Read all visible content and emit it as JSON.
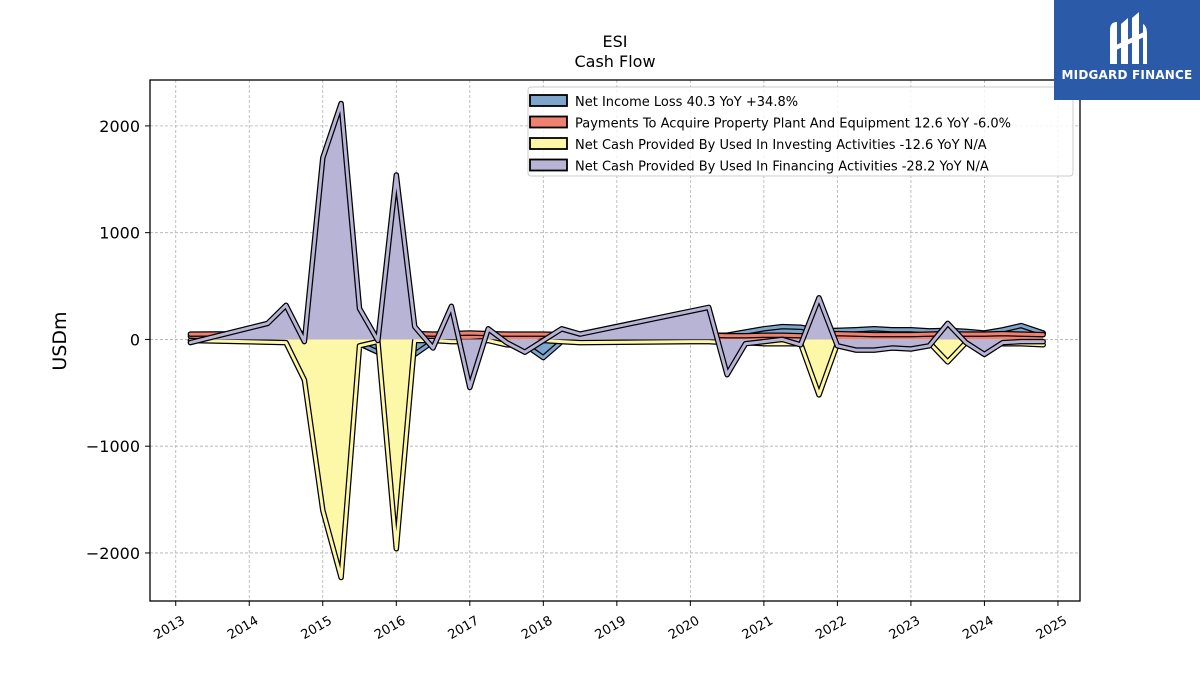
{
  "title": "ESI",
  "subtitle": "Cash Flow",
  "brand": {
    "name": "MIDGARD FINANCE",
    "color": "#2a5aa8"
  },
  "chart_data": {
    "type": "area",
    "title": "ESI",
    "subtitle": "Cash Flow",
    "xlabel": "",
    "ylabel": "USDm",
    "xlim": [
      2012.65,
      2025.3
    ],
    "ylim": [
      -2450,
      2430
    ],
    "xticks": [
      2013,
      2014,
      2015,
      2016,
      2017,
      2018,
      2019,
      2020,
      2021,
      2022,
      2023,
      2024,
      2025
    ],
    "yticks": [
      -2000,
      -1000,
      0,
      1000,
      2000
    ],
    "ytick_labels": [
      "−2000",
      "−1000",
      "0",
      "1000",
      "2000"
    ],
    "grid": true,
    "legend_position": "top-right",
    "series": [
      {
        "name": "Net Income Loss  40.3 YoY +34.8%",
        "color": "#7ea6cc",
        "x": [
          2013.2,
          2014.5,
          2015.0,
          2015.25,
          2015.5,
          2015.75,
          2016.0,
          2016.25,
          2016.5,
          2016.75,
          2017.0,
          2017.25,
          2017.5,
          2017.75,
          2018.0,
          2018.25,
          2018.5,
          2020.0,
          2020.25,
          2020.5,
          2020.75,
          2021.0,
          2021.25,
          2021.5,
          2021.75,
          2022.0,
          2022.25,
          2022.5,
          2022.75,
          2023.0,
          2023.25,
          2023.5,
          2023.75,
          2024.0,
          2024.25,
          2024.5,
          2024.8
        ],
        "values": [
          30,
          40,
          -60,
          -50,
          -40,
          -120,
          -130,
          -140,
          -20,
          30,
          40,
          45,
          40,
          -50,
          -170,
          -20,
          35,
          110,
          40,
          40,
          70,
          100,
          120,
          115,
          80,
          85,
          90,
          100,
          90,
          90,
          80,
          85,
          75,
          60,
          90,
          130,
          60
        ]
      },
      {
        "name": "Payments To Acquire Property Plant And Equipment  12.6 YoY -6.0%",
        "color": "#f08070",
        "x": [
          2013.2,
          2014.5,
          2015.0,
          2015.25,
          2015.5,
          2015.75,
          2016.0,
          2016.25,
          2016.5,
          2016.75,
          2017.0,
          2017.25,
          2017.5,
          2017.75,
          2018.0,
          2018.25,
          2018.5,
          2020.0,
          2020.25,
          2020.5,
          2020.75,
          2021.0,
          2021.25,
          2021.5,
          2021.75,
          2022.0,
          2022.25,
          2022.5,
          2022.75,
          2023.0,
          2023.25,
          2023.5,
          2023.75,
          2024.0,
          2024.25,
          2024.5,
          2024.8
        ],
        "values": [
          50,
          55,
          55,
          60,
          55,
          50,
          55,
          55,
          50,
          55,
          60,
          55,
          50,
          50,
          50,
          45,
          45,
          40,
          40,
          35,
          35,
          40,
          40,
          35,
          45,
          55,
          50,
          45,
          45,
          45,
          50,
          55,
          50,
          50,
          55,
          50,
          45
        ]
      },
      {
        "name": "Net Cash Provided By Used In Investing Activities  -12.6 YoY N/A",
        "color": "#fdf8a8",
        "x": [
          2013.2,
          2014.5,
          2014.75,
          2015.0,
          2015.25,
          2015.5,
          2015.75,
          2016.0,
          2016.25,
          2016.5,
          2016.75,
          2017.0,
          2017.25,
          2017.5,
          2017.75,
          2018.0,
          2018.25,
          2018.5,
          2020.0,
          2020.25,
          2020.5,
          2020.75,
          2021.0,
          2021.25,
          2021.5,
          2021.75,
          2022.0,
          2022.25,
          2022.5,
          2022.75,
          2023.0,
          2023.25,
          2023.5,
          2023.75,
          2024.0,
          2024.25,
          2024.5,
          2024.8
        ],
        "values": [
          -10,
          -30,
          -380,
          -1600,
          -2230,
          -60,
          -20,
          -1960,
          -10,
          -10,
          -20,
          -20,
          -10,
          -50,
          -60,
          -10,
          -20,
          -30,
          -20,
          -20,
          -30,
          -30,
          -40,
          -40,
          -40,
          -520,
          -40,
          -30,
          -30,
          -30,
          -30,
          -30,
          -210,
          -30,
          -30,
          -40,
          -40,
          -50
        ]
      },
      {
        "name": "Net Cash Provided By Used In Financing Activities  -28.2 YoY N/A",
        "color": "#b8b4d6",
        "x": [
          2013.2,
          2014.25,
          2014.5,
          2014.75,
          2015.0,
          2015.25,
          2015.5,
          2015.75,
          2016.0,
          2016.25,
          2016.5,
          2016.75,
          2017.0,
          2017.25,
          2017.5,
          2017.75,
          2018.0,
          2018.25,
          2018.5,
          2020.25,
          2020.5,
          2020.75,
          2021.0,
          2021.25,
          2021.5,
          2021.75,
          2022.0,
          2022.25,
          2022.5,
          2022.75,
          2023.0,
          2023.25,
          2023.5,
          2023.75,
          2024.0,
          2024.25,
          2024.5,
          2024.8
        ],
        "values": [
          -30,
          150,
          320,
          -20,
          1700,
          2210,
          290,
          -10,
          1540,
          120,
          -80,
          310,
          -450,
          100,
          -30,
          -120,
          -10,
          100,
          50,
          300,
          -330,
          -40,
          -20,
          0,
          -50,
          390,
          -60,
          -100,
          -100,
          -80,
          -90,
          -60,
          150,
          -30,
          -140,
          -30,
          -20,
          -20
        ]
      }
    ]
  }
}
